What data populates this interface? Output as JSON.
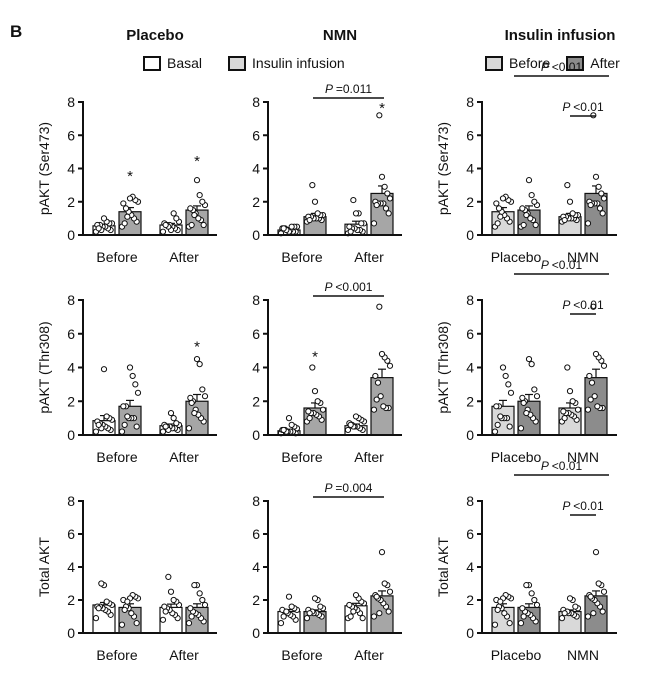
{
  "figure_label": "B",
  "column_titles": [
    "Placebo",
    "NMN",
    "Insulin infusion"
  ],
  "legends": {
    "left": [
      {
        "label": "Basal",
        "color": "#ffffff"
      },
      {
        "label": "Insulin infusion",
        "color": "#d9d9d9"
      }
    ],
    "right": [
      {
        "label": "Before",
        "color": "#d9d9d9"
      },
      {
        "label": "After",
        "color": "#8c8c8c"
      }
    ]
  },
  "colors": {
    "basal": "#ffffff",
    "insulin": "#a6a6a6",
    "before": "#d9d9d9",
    "after": "#8c8c8c",
    "axis": "#111111"
  },
  "chart_data": [
    {
      "type": "bar",
      "row": 0,
      "col": 0,
      "ylabel": "pAKT (Ser473)",
      "ylim": [
        0,
        8
      ],
      "yticks": [
        0,
        2,
        4,
        6,
        8
      ],
      "categories": [
        "Before",
        "After"
      ],
      "series": [
        {
          "name": "Basal",
          "values": [
            0.55,
            0.6
          ]
        },
        {
          "name": "Insulin infusion",
          "values": [
            1.4,
            1.5
          ]
        }
      ],
      "sem": [
        [
          0.1,
          0.1
        ],
        [
          0.25,
          0.25
        ]
      ],
      "points": [
        [
          [
            0.2,
            0.3,
            0.4,
            0.5,
            0.5,
            0.6,
            0.6,
            0.7,
            0.7,
            0.8,
            1.0,
            0.3,
            0.4
          ],
          [
            0.2,
            0.3,
            0.4,
            0.5,
            0.6,
            0.6,
            0.7,
            0.8,
            1.0,
            1.3,
            0.3,
            0.5,
            0.6
          ]
        ],
        [
          [
            0.5,
            0.8,
            1.0,
            1.2,
            1.4,
            1.6,
            1.9,
            2.0,
            2.1,
            2.3,
            2.2,
            1.1,
            0.7
          ],
          [
            0.5,
            0.6,
            0.9,
            1.0,
            1.3,
            1.5,
            1.6,
            1.8,
            2.0,
            2.4,
            3.3,
            1.2,
            0.6
          ]
        ]
      ],
      "annotations": [
        {
          "text": "*",
          "category": "Before",
          "series": 1,
          "y": 3.6
        },
        {
          "text": "*",
          "category": "After",
          "series": 1,
          "y": 4.5
        }
      ],
      "brackets": []
    },
    {
      "type": "bar",
      "row": 0,
      "col": 1,
      "ylabel": "",
      "ylim": [
        0,
        8
      ],
      "yticks": [
        0,
        2,
        4,
        6,
        8
      ],
      "categories": [
        "Before",
        "After"
      ],
      "series": [
        {
          "name": "Basal",
          "values": [
            0.3,
            0.65
          ]
        },
        {
          "name": "Insulin infusion",
          "values": [
            1.1,
            2.5
          ]
        }
      ],
      "sem": [
        [
          0.05,
          0.18
        ],
        [
          0.2,
          0.45
        ]
      ],
      "points": [
        [
          [
            0.1,
            0.2,
            0.2,
            0.3,
            0.3,
            0.4,
            0.4,
            0.5,
            0.5,
            0.5,
            0.2,
            0.3,
            0.4
          ],
          [
            0.1,
            0.2,
            0.3,
            0.3,
            0.4,
            0.4,
            0.5,
            0.7,
            0.7,
            1.3,
            1.3,
            2.1,
            0.2
          ]
        ],
        [
          [
            0.8,
            0.9,
            1.0,
            1.0,
            1.0,
            1.1,
            1.1,
            1.2,
            1.2,
            1.3,
            2.0,
            3.0,
            0.9
          ],
          [
            0.7,
            1.3,
            1.6,
            1.9,
            1.9,
            1.9,
            2.0,
            2.2,
            2.5,
            2.9,
            3.5,
            7.2,
            1.8
          ]
        ]
      ],
      "annotations": [
        {
          "text": "*",
          "category": "After",
          "series": 1,
          "y": 7.7
        }
      ],
      "brackets": [
        {
          "text": "P =0.011",
          "from": "Before",
          "to": "After",
          "level": 0
        }
      ]
    },
    {
      "type": "bar",
      "row": 0,
      "col": 2,
      "ylabel": "pAKT (Ser473)",
      "ylim": [
        0,
        8
      ],
      "yticks": [
        0,
        2,
        4,
        6,
        8
      ],
      "categories": [
        "Placebo",
        "NMN"
      ],
      "series": [
        {
          "name": "Before",
          "values": [
            1.4,
            1.1
          ]
        },
        {
          "name": "After",
          "values": [
            1.5,
            2.5
          ]
        }
      ],
      "sem": [
        [
          0.25,
          0.2
        ],
        [
          0.25,
          0.45
        ]
      ],
      "points": [
        [
          [
            0.5,
            0.8,
            1.0,
            1.2,
            1.4,
            1.6,
            1.9,
            2.0,
            2.1,
            2.3,
            2.2,
            1.1,
            0.7
          ],
          [
            0.8,
            0.9,
            1.0,
            1.0,
            1.0,
            1.1,
            1.1,
            1.2,
            1.2,
            1.3,
            2.0,
            3.0,
            0.9
          ]
        ],
        [
          [
            0.5,
            0.6,
            0.9,
            1.0,
            1.3,
            1.5,
            1.6,
            1.8,
            2.0,
            2.4,
            3.3,
            1.2,
            0.6
          ],
          [
            0.7,
            1.3,
            1.6,
            1.9,
            1.9,
            1.9,
            2.0,
            2.2,
            2.5,
            2.9,
            3.5,
            7.2,
            1.8
          ]
        ]
      ],
      "annotations": [],
      "brackets": [
        {
          "text": "P <0.01",
          "from": "Placebo",
          "to": "NMN",
          "level": 1
        },
        {
          "text": "P <0.01",
          "fromSeries": 0,
          "to": "NMN",
          "level": 0,
          "within": "NMN"
        }
      ]
    },
    {
      "type": "bar",
      "row": 1,
      "col": 0,
      "ylabel": "pAKT (Thr308)",
      "ylim": [
        0,
        8
      ],
      "yticks": [
        0,
        2,
        4,
        6,
        8
      ],
      "categories": [
        "Before",
        "After"
      ],
      "series": [
        {
          "name": "Basal",
          "values": [
            0.85,
            0.55
          ]
        },
        {
          "name": "Insulin infusion",
          "values": [
            1.7,
            2.0
          ]
        }
      ],
      "sem": [
        [
          0.3,
          0.1
        ],
        [
          0.35,
          0.4
        ]
      ],
      "points": [
        [
          [
            0.2,
            0.3,
            0.4,
            0.5,
            0.6,
            0.7,
            0.8,
            0.9,
            1.0,
            1.1,
            3.9,
            0.4,
            0.6
          ],
          [
            0.2,
            0.3,
            0.4,
            0.4,
            0.5,
            0.5,
            0.6,
            0.6,
            0.7,
            1.0,
            1.3,
            0.3,
            0.5
          ]
        ],
        [
          [
            0.2,
            0.5,
            1.0,
            1.0,
            1.0,
            1.7,
            1.7,
            2.5,
            3.0,
            3.5,
            4.0,
            1.1,
            0.6
          ],
          [
            0.4,
            0.8,
            1.0,
            1.2,
            1.5,
            2.0,
            2.2,
            2.3,
            2.7,
            4.2,
            4.5,
            1.3,
            1.9
          ]
        ]
      ],
      "annotations": [
        {
          "text": "*",
          "category": "After",
          "series": 1,
          "y": 5.3
        }
      ],
      "brackets": []
    },
    {
      "type": "bar",
      "row": 1,
      "col": 1,
      "ylabel": "",
      "ylim": [
        0,
        8
      ],
      "yticks": [
        0,
        2,
        4,
        6,
        8
      ],
      "categories": [
        "Before",
        "After"
      ],
      "series": [
        {
          "name": "Basal",
          "values": [
            0.25,
            0.55
          ]
        },
        {
          "name": "Insulin infusion",
          "values": [
            1.6,
            3.4
          ]
        }
      ],
      "sem": [
        [
          0.08,
          0.1
        ],
        [
          0.3,
          0.5
        ]
      ],
      "points": [
        [
          [
            0.1,
            0.1,
            0.2,
            0.2,
            0.2,
            0.3,
            0.3,
            0.4,
            0.5,
            0.6,
            1.0,
            0.2,
            0.3
          ],
          [
            0.3,
            0.3,
            0.4,
            0.5,
            0.5,
            0.6,
            0.7,
            0.8,
            0.9,
            1.0,
            1.1,
            0.5,
            0.6
          ]
        ],
        [
          [
            0.8,
            0.9,
            1.1,
            1.2,
            1.3,
            1.3,
            1.4,
            1.5,
            1.9,
            2.0,
            2.6,
            4.0,
            1.0
          ],
          [
            1.5,
            1.6,
            1.6,
            1.7,
            2.3,
            3.1,
            3.5,
            4.1,
            4.4,
            4.6,
            4.8,
            7.6,
            2.1
          ]
        ]
      ],
      "annotations": [
        {
          "text": "*",
          "category": "Before",
          "series": 1,
          "y": 4.7
        }
      ],
      "brackets": [
        {
          "text": "P <0.001",
          "from": "Before",
          "to": "After",
          "level": 0
        }
      ]
    },
    {
      "type": "bar",
      "row": 1,
      "col": 2,
      "ylabel": "pAKT (Thr308)",
      "ylim": [
        0,
        8
      ],
      "yticks": [
        0,
        2,
        4,
        6,
        8
      ],
      "categories": [
        "Placebo",
        "NMN"
      ],
      "series": [
        {
          "name": "Before",
          "values": [
            1.7,
            1.6
          ]
        },
        {
          "name": "After",
          "values": [
            2.0,
            3.4
          ]
        }
      ],
      "sem": [
        [
          0.35,
          0.3
        ],
        [
          0.4,
          0.5
        ]
      ],
      "points": [
        [
          [
            0.2,
            0.5,
            1.0,
            1.0,
            1.0,
            1.7,
            1.7,
            2.5,
            3.0,
            3.5,
            4.0,
            1.1,
            0.6
          ],
          [
            0.8,
            0.9,
            1.1,
            1.2,
            1.3,
            1.3,
            1.4,
            1.5,
            1.9,
            2.0,
            2.6,
            4.0,
            1.0
          ]
        ],
        [
          [
            0.4,
            0.8,
            1.0,
            1.2,
            1.5,
            2.0,
            2.2,
            2.3,
            2.7,
            4.2,
            4.5,
            1.3,
            1.9
          ],
          [
            1.5,
            1.6,
            1.6,
            1.7,
            2.3,
            3.1,
            3.5,
            4.1,
            4.4,
            4.6,
            4.8,
            7.6,
            2.1
          ]
        ]
      ],
      "annotations": [],
      "brackets": [
        {
          "text": "P <0.01",
          "from": "Placebo",
          "to": "NMN",
          "level": 1
        },
        {
          "text": "P <0.01",
          "fromSeries": 0,
          "to": "NMN",
          "level": 0,
          "within": "NMN"
        }
      ]
    },
    {
      "type": "bar",
      "row": 2,
      "col": 0,
      "ylabel": "Total AKT",
      "ylim": [
        0,
        8
      ],
      "yticks": [
        0,
        2,
        4,
        6,
        8
      ],
      "categories": [
        "Before",
        "After"
      ],
      "series": [
        {
          "name": "Basal",
          "values": [
            1.7,
            1.55
          ]
        },
        {
          "name": "Insulin infusion",
          "values": [
            1.55,
            1.55
          ]
        }
      ],
      "sem": [
        [
          0.15,
          0.2
        ],
        [
          0.22,
          0.22
        ]
      ],
      "points": [
        [
          [
            0.9,
            1.1,
            1.3,
            1.4,
            1.5,
            1.6,
            1.6,
            1.7,
            1.8,
            1.9,
            2.9,
            3.0,
            1.5
          ],
          [
            0.8,
            0.9,
            1.1,
            1.2,
            1.4,
            1.5,
            1.6,
            1.7,
            1.9,
            2.0,
            2.5,
            3.4,
            1.3
          ]
        ],
        [
          [
            0.5,
            0.6,
            1.0,
            1.2,
            1.5,
            1.6,
            2.0,
            2.1,
            2.2,
            2.3,
            2.1,
            1.9,
            1.4
          ],
          [
            0.6,
            0.7,
            0.9,
            1.1,
            1.2,
            1.3,
            1.5,
            1.7,
            2.0,
            2.4,
            2.9,
            2.9,
            1.0
          ]
        ]
      ],
      "annotations": [],
      "brackets": []
    },
    {
      "type": "bar",
      "row": 2,
      "col": 1,
      "ylabel": "",
      "ylim": [
        0,
        8
      ],
      "yticks": [
        0,
        2,
        4,
        6,
        8
      ],
      "categories": [
        "Before",
        "After"
      ],
      "series": [
        {
          "name": "Basal",
          "values": [
            1.3,
            1.65
          ]
        },
        {
          "name": "Insulin infusion",
          "values": [
            1.3,
            2.25
          ]
        }
      ],
      "sem": [
        [
          0.12,
          0.15
        ],
        [
          0.1,
          0.3
        ]
      ],
      "points": [
        [
          [
            0.6,
            0.8,
            1.0,
            1.1,
            1.2,
            1.3,
            1.4,
            1.4,
            1.5,
            1.6,
            2.2,
            1.3,
            1.0
          ],
          [
            0.9,
            0.9,
            1.2,
            1.4,
            1.5,
            1.6,
            1.7,
            1.8,
            1.9,
            2.1,
            2.3,
            1.3,
            1.0
          ]
        ],
        [
          [
            0.9,
            1.0,
            1.1,
            1.2,
            1.2,
            1.3,
            1.4,
            1.5,
            1.6,
            2.0,
            2.1,
            1.3,
            1.2
          ],
          [
            1.0,
            1.3,
            1.6,
            1.8,
            2.0,
            2.1,
            2.3,
            2.5,
            2.9,
            3.0,
            4.9,
            1.2,
            2.2
          ]
        ]
      ],
      "annotations": [],
      "brackets": [
        {
          "text": "P =0.004",
          "from": "Before",
          "to": "After",
          "level": 0
        }
      ]
    },
    {
      "type": "bar",
      "row": 2,
      "col": 2,
      "ylabel": "Total AKT",
      "ylim": [
        0,
        8
      ],
      "yticks": [
        0,
        2,
        4,
        6,
        8
      ],
      "categories": [
        "Placebo",
        "NMN"
      ],
      "series": [
        {
          "name": "Before",
          "values": [
            1.55,
            1.3
          ]
        },
        {
          "name": "After",
          "values": [
            1.55,
            2.25
          ]
        }
      ],
      "sem": [
        [
          0.22,
          0.1
        ],
        [
          0.22,
          0.3
        ]
      ],
      "points": [
        [
          [
            0.5,
            0.6,
            1.0,
            1.2,
            1.5,
            1.6,
            2.0,
            2.1,
            2.2,
            2.3,
            2.1,
            1.9,
            1.4
          ],
          [
            0.9,
            1.0,
            1.1,
            1.2,
            1.2,
            1.3,
            1.4,
            1.5,
            1.6,
            2.0,
            2.1,
            1.3,
            1.2
          ]
        ],
        [
          [
            0.6,
            0.7,
            0.9,
            1.1,
            1.2,
            1.3,
            1.5,
            1.7,
            2.0,
            2.4,
            2.9,
            2.9,
            1.0
          ],
          [
            1.0,
            1.3,
            1.6,
            1.8,
            2.0,
            2.1,
            2.3,
            2.5,
            2.9,
            3.0,
            4.9,
            1.2,
            2.2
          ]
        ]
      ],
      "annotations": [],
      "brackets": [
        {
          "text": "P <0.01",
          "from": "Placebo",
          "to": "NMN",
          "level": 1
        },
        {
          "text": "P <0.01",
          "fromSeries": 0,
          "to": "NMN",
          "level": 0,
          "within": "NMN"
        }
      ]
    }
  ]
}
